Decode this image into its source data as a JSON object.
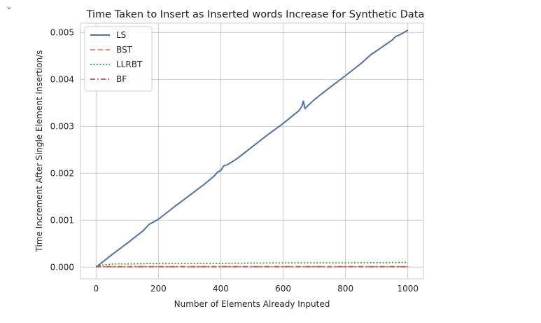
{
  "cell": {
    "collapse_icon": "chevron-down-icon"
  },
  "chart_data": {
    "type": "line",
    "title": "Time Taken to Insert as Inserted words Increase for Synthetic Data",
    "xlabel": "Number of Elements Already Inputed",
    "ylabel": "Time Increment After Single Element Insertion/s",
    "xlim": [
      -50,
      1050
    ],
    "ylim": [
      -0.00025,
      0.0052
    ],
    "xticks": [
      0,
      200,
      400,
      600,
      800,
      1000
    ],
    "xtick_labels": [
      "0",
      "200",
      "400",
      "600",
      "800",
      "1000"
    ],
    "yticks": [
      0.0,
      0.001,
      0.002,
      0.003,
      0.004,
      0.005
    ],
    "ytick_labels": [
      "0.000",
      "0.001",
      "0.002",
      "0.003",
      "0.004",
      "0.005"
    ],
    "grid": true,
    "legend_position": "top-left",
    "series": [
      {
        "name": "LS",
        "color": "#4c72b0",
        "dash": "solid",
        "x": [
          0,
          50,
          100,
          150,
          170,
          200,
          250,
          300,
          350,
          380,
          390,
          400,
          410,
          420,
          430,
          450,
          500,
          550,
          600,
          650,
          660,
          665,
          670,
          700,
          750,
          800,
          850,
          880,
          900,
          950,
          960,
          980,
          1000
        ],
        "y": [
          0.0,
          0.00026,
          0.00051,
          0.00077,
          0.00091,
          0.00102,
          0.00128,
          0.00153,
          0.00178,
          0.00195,
          0.00203,
          0.00206,
          0.00216,
          0.00218,
          0.00222,
          0.0023,
          0.00256,
          0.00282,
          0.00306,
          0.00333,
          0.00342,
          0.00354,
          0.00338,
          0.00357,
          0.00383,
          0.00408,
          0.00434,
          0.00452,
          0.00461,
          0.00484,
          0.00491,
          0.00497,
          0.00505
        ]
      },
      {
        "name": "BST",
        "color": "#dd8452",
        "dash": "dashed",
        "x": [
          0,
          250,
          500,
          750,
          1000
        ],
        "y": [
          1e-05,
          1e-05,
          1e-05,
          1e-05,
          1e-05
        ]
      },
      {
        "name": "LLRBT",
        "color": "#2ca02c",
        "dash": "dotted",
        "x": [
          0,
          30,
          60,
          100,
          200,
          400,
          600,
          800,
          1000
        ],
        "y": [
          2e-05,
          5e-05,
          7e-05,
          7e-05,
          8e-05,
          8e-05,
          9e-05,
          9e-05,
          0.0001
        ]
      },
      {
        "name": "BF",
        "color": "#c44e52",
        "dash": "dashdot",
        "x": [
          0,
          250,
          500,
          750,
          1000
        ],
        "y": [
          1e-05,
          1e-05,
          1e-05,
          1e-05,
          1e-05
        ]
      }
    ]
  }
}
